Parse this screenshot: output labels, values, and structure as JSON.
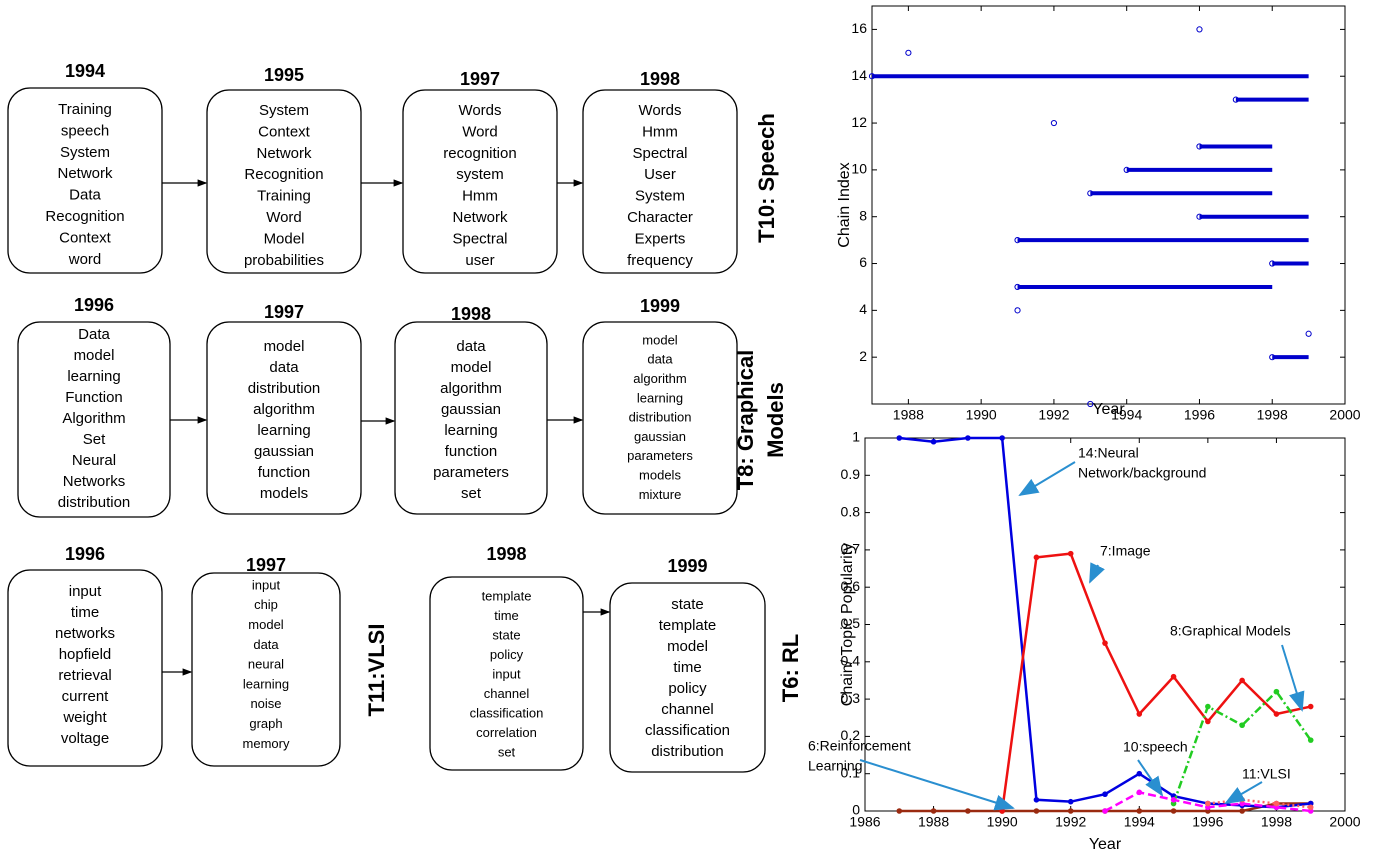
{
  "groups": [
    {
      "label": [
        "T10: Speech"
      ],
      "color": "#e020a0",
      "boxes": [
        {
          "year": "1994",
          "words": [
            "Training",
            "speech",
            "System",
            "Network",
            "Data",
            "Recognition",
            "Context",
            "word"
          ]
        },
        {
          "year": "1995",
          "words": [
            "System",
            "Context",
            "Network",
            "Recognition",
            "Training",
            "Word",
            "Model",
            "probabilities"
          ]
        },
        {
          "year": "1997",
          "words": [
            "Words",
            "Word",
            "recognition",
            "system",
            "Hmm",
            "Network",
            "Spectral",
            "user"
          ]
        },
        {
          "year": "1998",
          "words": [
            "Words",
            "Hmm",
            "Spectral",
            "User",
            "System",
            "Character",
            "Experts",
            "frequency"
          ]
        }
      ]
    },
    {
      "label": [
        "T8: Graphical",
        "Models"
      ],
      "color": "#1a9e1a",
      "boxes": [
        {
          "year": "1996",
          "words": [
            "Data",
            "model",
            "learning",
            "Function",
            "Algorithm",
            "Set",
            "Neural",
            "Networks",
            "distribution"
          ]
        },
        {
          "year": "1997",
          "words": [
            "model",
            "data",
            "distribution",
            "algorithm",
            "learning",
            "gaussian",
            "function",
            "models"
          ]
        },
        {
          "year": "1998",
          "words": [
            "data",
            "model",
            "algorithm",
            "gaussian",
            "learning",
            "function",
            "parameters",
            "set"
          ]
        },
        {
          "year": "1999",
          "words": [
            "model",
            "data",
            "algorithm",
            "learning",
            "distribution",
            "gaussian",
            "parameters",
            "models",
            "mixture"
          ]
        }
      ]
    },
    {
      "label": [
        "T11:VLSI"
      ],
      "color": "#ee1111",
      "boxes": [
        {
          "year": "1996",
          "words": [
            "input",
            "time",
            "networks",
            "hopfield",
            "retrieval",
            "current",
            "weight",
            "voltage"
          ]
        },
        {
          "year": "1997",
          "words": [
            "input",
            "chip",
            "model",
            "data",
            "neural",
            "learning",
            "noise",
            "graph",
            "memory"
          ]
        }
      ]
    },
    {
      "label": [
        "T6: RL"
      ],
      "color": "#9c6b3c",
      "boxes": [
        {
          "year": "1998",
          "words": [
            "template",
            "time",
            "state",
            "policy",
            "input",
            "channel",
            "classification",
            "correlation",
            "set"
          ]
        },
        {
          "year": "1999",
          "words": [
            "state",
            "template",
            "model",
            "time",
            "policy",
            "channel",
            "classification",
            "distribution"
          ]
        }
      ]
    }
  ],
  "chart_data": [
    {
      "type": "segments",
      "x_label": "Year",
      "y_label": "Chain Index",
      "color": "#0000cc",
      "y": [
        16,
        15,
        14,
        13,
        12,
        11,
        10,
        9,
        8,
        7,
        6,
        5,
        4,
        3,
        2,
        0
      ],
      "x": [
        1996,
        1988,
        1987,
        1997,
        1992,
        1996,
        1994,
        1993,
        1996,
        1991,
        1998,
        1991,
        1991,
        1999,
        1998,
        1993
      ],
      "x_end": [
        null,
        null,
        1999,
        1999,
        null,
        1998,
        1998,
        1998,
        1999,
        1999,
        1999,
        1998,
        null,
        null,
        1999,
        null
      ],
      "xlim": [
        1987,
        2000
      ],
      "xticks": [
        1988,
        1990,
        1992,
        1994,
        1996,
        1998,
        2000
      ],
      "ylim": [
        0,
        17
      ],
      "yticks": [
        2,
        4,
        6,
        8,
        10,
        12,
        14,
        16
      ]
    },
    {
      "type": "line",
      "x_label": "Year",
      "y_label": "Chain/ Topic Popularity",
      "x": [
        1987,
        1988,
        1989,
        1990,
        1991,
        1992,
        1993,
        1994,
        1995,
        1996,
        1997,
        1998,
        1999
      ],
      "series": [
        {
          "color": "#9a2a10",
          "style": "solid",
          "values": [
            0,
            0,
            0,
            0,
            0,
            0,
            0,
            0,
            0,
            0,
            0,
            0.02,
            0.02
          ]
        },
        {
          "color": "#0000e0",
          "style": "solid",
          "values": [
            1,
            0.99,
            1,
            1,
            0.03,
            0.025,
            0.045,
            0.1,
            0.04,
            0.02,
            0.015,
            0.01,
            0.02
          ]
        },
        {
          "color": "#ee1111",
          "style": "solid",
          "values": [
            null,
            null,
            null,
            0,
            0.68,
            0.69,
            0.45,
            0.26,
            0.36,
            0.24,
            0.35,
            0.26,
            0.28
          ]
        },
        {
          "color": "#22cc22",
          "style": "dashdot",
          "values": [
            null,
            null,
            null,
            null,
            null,
            null,
            null,
            null,
            0.02,
            0.28,
            0.23,
            0.32,
            0.19
          ]
        },
        {
          "color": "#ff00ff",
          "style": "dashed",
          "values": [
            null,
            null,
            null,
            null,
            null,
            null,
            0,
            0.05,
            0.03,
            0.01,
            0.02,
            0.01,
            0
          ]
        },
        {
          "color": "#ff6060",
          "style": "dotted",
          "values": [
            null,
            null,
            null,
            null,
            null,
            null,
            null,
            null,
            null,
            0.02,
            0.03,
            0.02,
            0.01
          ]
        }
      ],
      "annotations": [
        {
          "lines": [
            "14:Neural",
            "Network/background"
          ],
          "color": "#0000e0"
        },
        {
          "lines": [
            "7:Image"
          ],
          "color": "#ee1111"
        },
        {
          "lines": [
            "8:Graphical Models"
          ],
          "color": "#22cc22"
        },
        {
          "lines": [
            "6:Reinforcement",
            "Learning"
          ],
          "color": "#9a2a10"
        },
        {
          "lines": [
            "10:speech"
          ],
          "color": "#ff00ff"
        },
        {
          "lines": [
            "11:VLSI"
          ],
          "color": "#ee1111"
        }
      ],
      "xlim": [
        1986,
        2000
      ],
      "xticks": [
        1986,
        1988,
        1990,
        1992,
        1994,
        1996,
        1998,
        2000
      ],
      "ylim": [
        0,
        1
      ],
      "yticks": [
        0,
        0.1,
        0.2,
        0.3,
        0.4,
        0.5,
        0.6,
        0.7,
        0.8,
        0.9,
        1
      ]
    }
  ]
}
